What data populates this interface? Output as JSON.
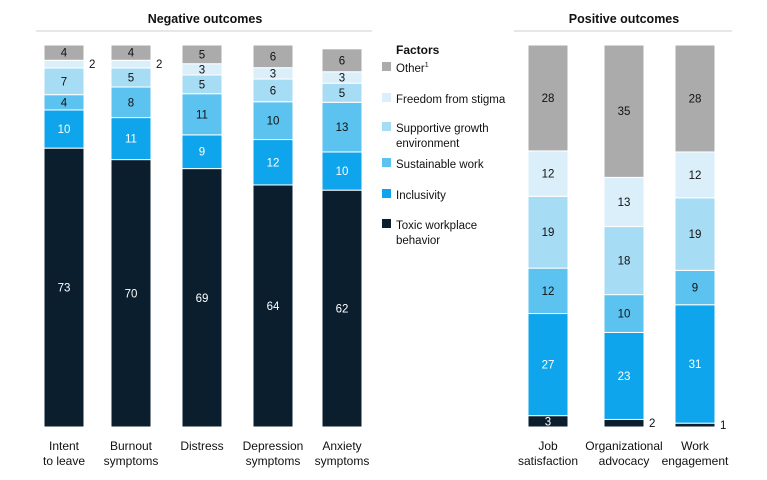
{
  "chart_data": [
    {
      "type": "bar",
      "stacked": true,
      "title": "Negative outcomes",
      "categories": [
        [
          "Intent",
          "to leave"
        ],
        [
          "Burnout",
          "symptoms"
        ],
        [
          "Distress"
        ],
        [
          "Depression",
          "symptoms"
        ],
        [
          "Anxiety",
          "symptoms"
        ]
      ],
      "series": [
        {
          "name": "Toxic workplace behavior",
          "color": "#0a1e2e",
          "values": [
            73,
            70,
            69,
            64,
            62
          ]
        },
        {
          "name": "Inclusivity",
          "color": "#0ea5ec",
          "values": [
            10,
            11,
            9,
            12,
            10
          ]
        },
        {
          "name": "Sustainable work",
          "color": "#5cc3f0",
          "values": [
            4,
            8,
            11,
            10,
            13
          ]
        },
        {
          "name": "Supportive growth environment",
          "color": "#a7dcf5",
          "values": [
            7,
            5,
            5,
            6,
            5
          ]
        },
        {
          "name": "Freedom from stigma",
          "color": "#daeffa",
          "values": [
            2,
            2,
            3,
            3,
            3
          ]
        },
        {
          "name": "Other",
          "color": "#ababab",
          "values": [
            4,
            4,
            5,
            6,
            6
          ]
        }
      ],
      "ylim": [
        0,
        100
      ]
    },
    {
      "type": "bar",
      "stacked": true,
      "title": "Positive outcomes",
      "categories": [
        [
          "Job",
          "satisfaction"
        ],
        [
          "Organizational",
          "advocacy"
        ],
        [
          "Work",
          "engagement"
        ]
      ],
      "series": [
        {
          "name": "Toxic workplace behavior",
          "color": "#0a1e2e",
          "values": [
            3,
            2,
            1
          ]
        },
        {
          "name": "Inclusivity",
          "color": "#0ea5ec",
          "values": [
            27,
            23,
            31
          ]
        },
        {
          "name": "Sustainable work",
          "color": "#5cc3f0",
          "values": [
            12,
            10,
            9
          ]
        },
        {
          "name": "Supportive growth environment",
          "color": "#a7dcf5",
          "values": [
            19,
            18,
            19
          ]
        },
        {
          "name": "Freedom from stigma",
          "color": "#daeffa",
          "values": [
            12,
            13,
            12
          ]
        },
        {
          "name": "Other",
          "color": "#ababab",
          "values": [
            28,
            35,
            28
          ]
        }
      ],
      "ylim": [
        0,
        100
      ]
    }
  ],
  "legend": {
    "title": "Factors",
    "items": [
      {
        "label": "Other",
        "superscript": "1",
        "color": "#ababab"
      },
      {
        "label": "Freedom from stigma",
        "color": "#daeffa"
      },
      {
        "label": [
          "Supportive growth",
          "environment"
        ],
        "color": "#a7dcf5"
      },
      {
        "label": "Sustainable work",
        "color": "#5cc3f0"
      },
      {
        "label": "Inclusivity",
        "color": "#0ea5ec"
      },
      {
        "label": [
          "Toxic workplace",
          "behavior"
        ],
        "color": "#0a1e2e"
      }
    ]
  }
}
